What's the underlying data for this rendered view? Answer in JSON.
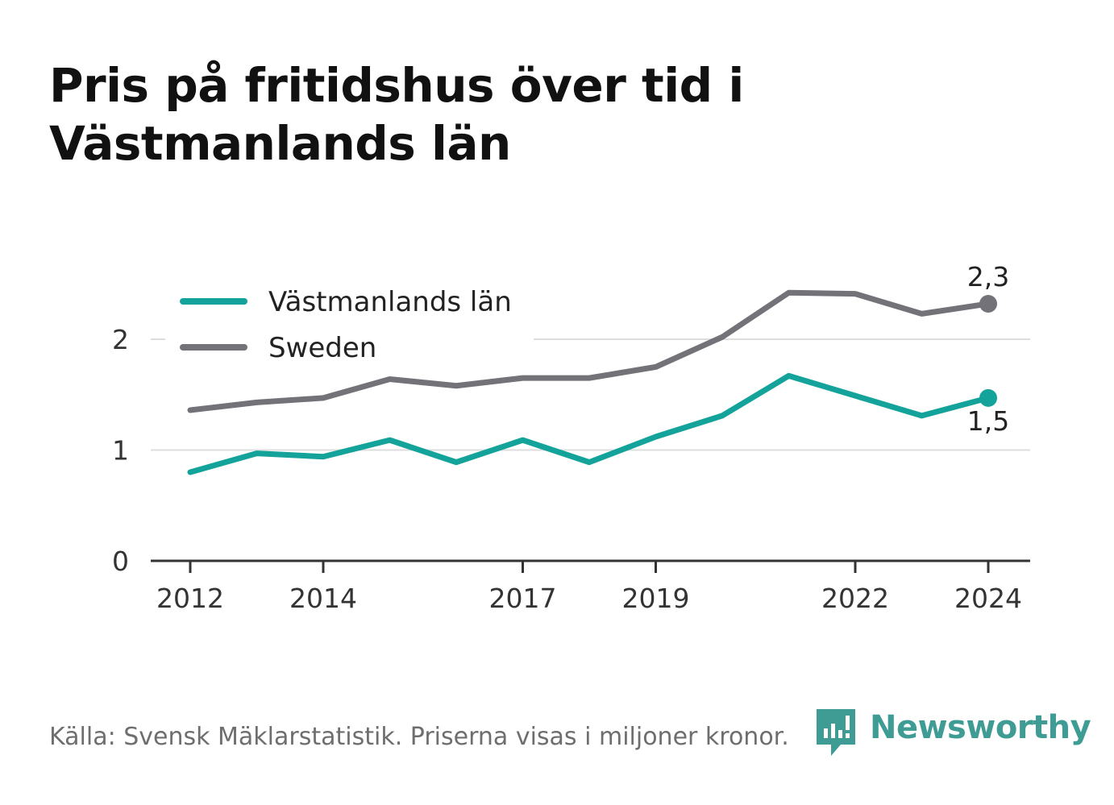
{
  "title": "Pris på fritidshus över tid i Västmanlands län",
  "source": "Källa: Svensk Mäklarstatistik. Priserna visas i miljoner kronor.",
  "brand": {
    "name": "Newsworthy",
    "logo_icon": "bar-chart-speech-bubble-icon"
  },
  "colors": {
    "region": "#13a39a",
    "sweden": "#737278",
    "grid": "#dddddd",
    "axis": "#333333",
    "text": "#333333"
  },
  "chart_data": {
    "type": "line",
    "title": "Pris på fritidshus över tid i Västmanlands län",
    "xlabel": "",
    "ylabel": "",
    "x": [
      2012,
      2013,
      2014,
      2015,
      2016,
      2017,
      2018,
      2019,
      2020,
      2021,
      2022,
      2023,
      2024
    ],
    "x_ticks": [
      "2012",
      "2014",
      "2017",
      "2019",
      "2022",
      "2024"
    ],
    "y_ticks": [
      "0",
      "1",
      "2"
    ],
    "ylim": [
      0,
      2.4
    ],
    "grid": true,
    "legend_position": "top-left",
    "series": [
      {
        "name": "Västmanlands län",
        "key": "region",
        "values": [
          0.8,
          0.97,
          0.94,
          1.09,
          0.89,
          1.09,
          0.89,
          1.12,
          1.31,
          1.67,
          1.49,
          1.31,
          1.47
        ],
        "end_label": "1,5"
      },
      {
        "name": "Sweden",
        "key": "sweden",
        "values": [
          1.36,
          1.43,
          1.47,
          1.64,
          1.58,
          1.65,
          1.65,
          1.75,
          2.02,
          2.42,
          2.41,
          2.23,
          2.32
        ],
        "end_label": "2,3"
      }
    ]
  }
}
